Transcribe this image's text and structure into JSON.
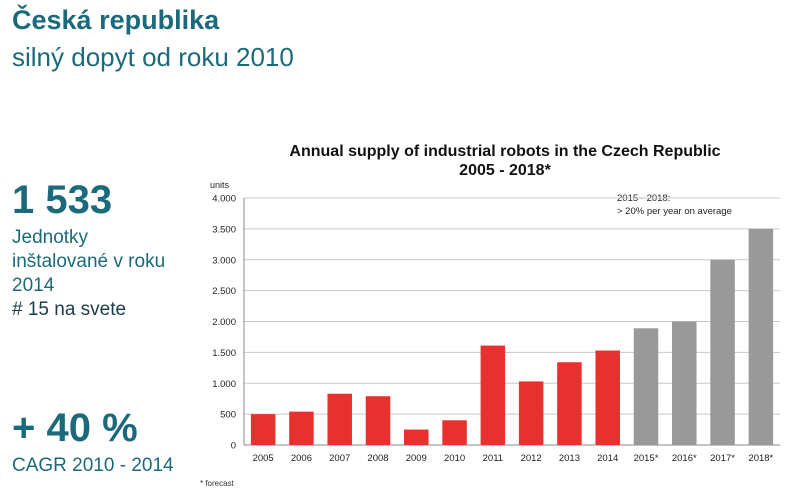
{
  "heading": {
    "title": "Česká republika",
    "subtitle": "silný dopyt od roku 2010"
  },
  "stats": {
    "units_value": "1 533",
    "units_line1": "Jednotky",
    "units_line2": "inštalované v roku",
    "units_line3": "2014",
    "rank": "# 15 na svete",
    "growth_value": "+ 40 %",
    "growth_label": "CAGR 2010 - 2014"
  },
  "colors": {
    "brand": "#1b6a7c",
    "actual": "#e8302e",
    "forecast": "#999999"
  },
  "chart_data": {
    "type": "bar",
    "title": "Annual supply of industrial robots in the Czech Republic",
    "subtitle": "2005 - 2018*",
    "ylabel": "units",
    "xlabel": "",
    "ylim": [
      0,
      4000
    ],
    "yticks": [
      {
        "value": 0,
        "label": "0"
      },
      {
        "value": 500,
        "label": "500"
      },
      {
        "value": 1000,
        "label": "1.000"
      },
      {
        "value": 1500,
        "label": "1.500"
      },
      {
        "value": 2000,
        "label": "2.000"
      },
      {
        "value": 2500,
        "label": "2.500"
      },
      {
        "value": 3000,
        "label": "3.000"
      },
      {
        "value": 3500,
        "label": "3.500"
      },
      {
        "value": 4000,
        "label": "4.000"
      }
    ],
    "grid": true,
    "legend": "none",
    "categories": [
      "2005",
      "2006",
      "2007",
      "2008",
      "2009",
      "2010",
      "2011",
      "2012",
      "2013",
      "2014",
      "2015*",
      "2016*",
      "2017*",
      "2018*"
    ],
    "values": [
      500,
      540,
      830,
      790,
      250,
      400,
      1610,
      1030,
      1340,
      1530,
      1890,
      2000,
      3000,
      3500
    ],
    "forecast": [
      false,
      false,
      false,
      false,
      false,
      false,
      false,
      false,
      false,
      false,
      true,
      true,
      true,
      true
    ],
    "annotation_line1": "2015 - 2018:",
    "annotation_line2": "> 20% per year on average",
    "footnote": "* forecast"
  }
}
